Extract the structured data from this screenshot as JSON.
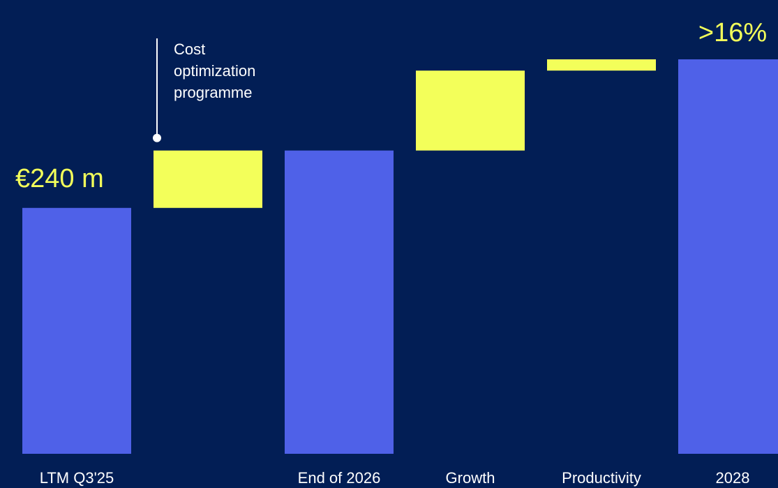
{
  "chart_data": {
    "type": "bar",
    "subtype": "waterfall",
    "categories": [
      "LTM Q3'25",
      "",
      "End of 2026",
      "Growth",
      "Productivity",
      "2028"
    ],
    "steps": [
      {
        "category": "LTM Q3'25",
        "kind": "total",
        "value": 240
      },
      {
        "category": "",
        "kind": "increase",
        "value": 56
      },
      {
        "category": "End of 2026",
        "kind": "total",
        "value": 296
      },
      {
        "category": "Growth",
        "kind": "increase",
        "value": 78
      },
      {
        "category": "Productivity",
        "kind": "increase",
        "value": 11
      },
      {
        "category": "2028",
        "kind": "total",
        "value": 385
      }
    ],
    "data_labels": [
      {
        "category": "LTM Q3'25",
        "text": "€240 m"
      },
      {
        "category": "2028",
        "text": ">16%"
      }
    ],
    "annotations": [
      {
        "category": "",
        "lines": [
          "Cost",
          "optimization",
          "programme"
        ]
      }
    ],
    "colors": {
      "total": "#4f61e8",
      "increase": "#f3ff5a",
      "background": "#021e55",
      "label": "#ffffff",
      "accent_text": "#f3ff5a"
    },
    "ylim": [
      0,
      385
    ],
    "grid": false,
    "legend": "none"
  }
}
